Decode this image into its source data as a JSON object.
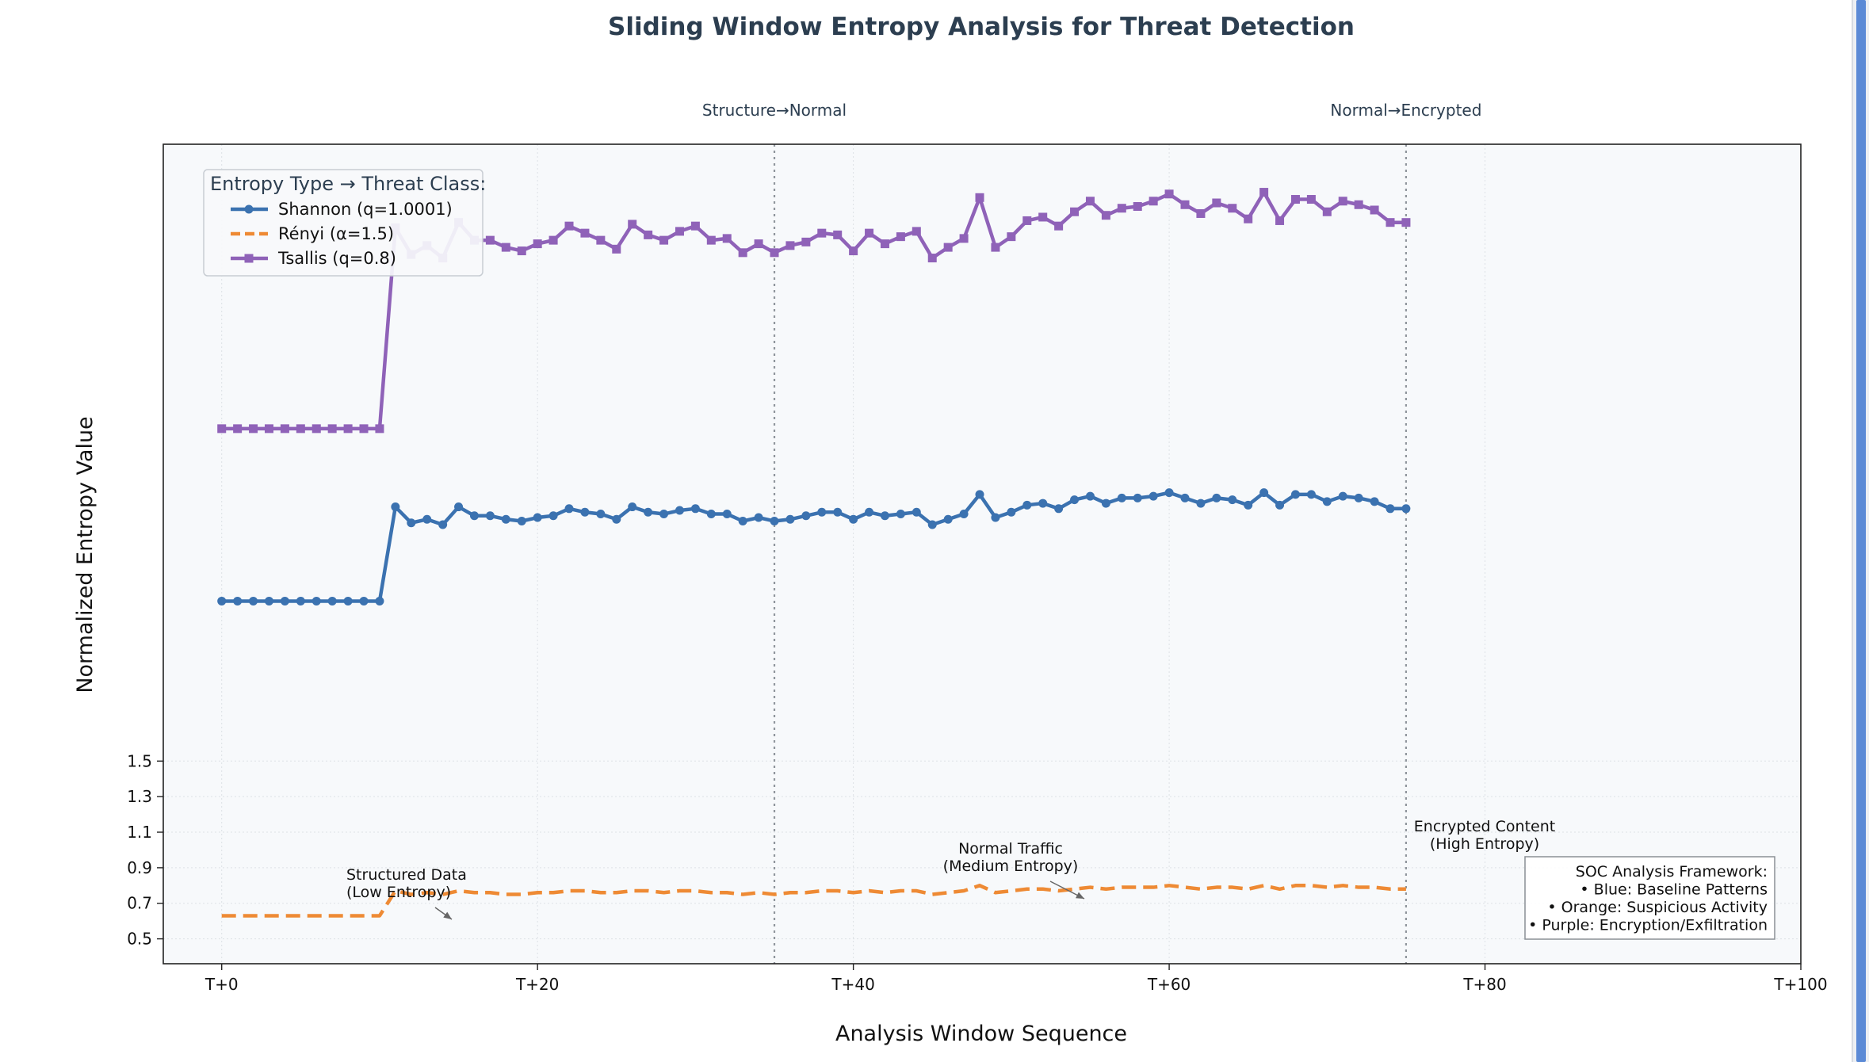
{
  "chart_data": {
    "type": "line",
    "title": "Sliding Window Entropy Analysis for Threat Detection",
    "xlabel": "Analysis Window Sequence",
    "ylabel": "Normalized Entropy Value",
    "xlim": [
      -3.7,
      100
    ],
    "ylim": [
      0.36,
      4.97
    ],
    "x_ticks": [
      0,
      20,
      40,
      60,
      80,
      100
    ],
    "x_tick_labels": [
      "T+0",
      "T+20",
      "T+40",
      "T+60",
      "T+80",
      "T+100"
    ],
    "y_ticks": [
      0.5,
      0.7,
      0.9,
      1.1,
      1.3,
      1.5
    ],
    "y_tick_labels": [
      "0.5",
      "0.7",
      "0.9",
      "1.1",
      "1.3",
      "1.5"
    ],
    "grid": true,
    "legend": {
      "title": "Entropy Type → Threat Class:",
      "placement": "top-left"
    },
    "x": [
      0,
      1,
      2,
      3,
      4,
      5,
      6,
      7,
      8,
      9,
      10,
      11,
      12,
      13,
      14,
      15,
      16,
      17,
      18,
      19,
      20,
      21,
      22,
      23,
      24,
      25,
      26,
      27,
      28,
      29,
      30,
      31,
      32,
      33,
      34,
      35,
      36,
      37,
      38,
      39,
      40,
      41,
      42,
      43,
      44,
      45,
      46,
      47,
      48,
      49,
      50,
      51,
      52,
      53,
      54,
      55,
      56,
      57,
      58,
      59,
      60,
      61,
      62,
      63,
      64,
      65,
      66,
      67,
      68,
      69,
      70,
      71,
      72,
      73,
      74,
      75
    ],
    "series": [
      {
        "name": "Shannon (q=1.0001)",
        "color": "#3b72b0",
        "style": "solid-circle",
        "values": [
          2.4,
          2.4,
          2.4,
          2.4,
          2.4,
          2.4,
          2.4,
          2.4,
          2.4,
          2.4,
          2.4,
          2.93,
          2.84,
          2.86,
          2.83,
          2.93,
          2.88,
          2.88,
          2.86,
          2.85,
          2.87,
          2.88,
          2.92,
          2.9,
          2.89,
          2.86,
          2.93,
          2.9,
          2.89,
          2.91,
          2.92,
          2.89,
          2.89,
          2.85,
          2.87,
          2.85,
          2.86,
          2.88,
          2.9,
          2.9,
          2.86,
          2.9,
          2.88,
          2.89,
          2.9,
          2.83,
          2.86,
          2.89,
          3.0,
          2.87,
          2.9,
          2.94,
          2.95,
          2.92,
          2.97,
          2.99,
          2.95,
          2.98,
          2.98,
          2.99,
          3.01,
          2.98,
          2.95,
          2.98,
          2.97,
          2.94,
          3.01,
          2.94,
          3.0,
          3.0,
          2.96,
          2.99,
          2.98,
          2.96,
          2.92,
          2.92
        ]
      },
      {
        "name": "Rényi (α=1.5)",
        "color": "#ee8a34",
        "style": "dashed",
        "values": [
          0.63,
          0.63,
          0.63,
          0.63,
          0.63,
          0.63,
          0.63,
          0.63,
          0.63,
          0.63,
          0.63,
          0.77,
          0.75,
          0.76,
          0.75,
          0.77,
          0.76,
          0.76,
          0.75,
          0.75,
          0.76,
          0.76,
          0.77,
          0.77,
          0.76,
          0.76,
          0.77,
          0.77,
          0.76,
          0.77,
          0.77,
          0.76,
          0.76,
          0.75,
          0.76,
          0.75,
          0.76,
          0.76,
          0.77,
          0.77,
          0.76,
          0.77,
          0.76,
          0.77,
          0.77,
          0.75,
          0.76,
          0.77,
          0.8,
          0.76,
          0.77,
          0.78,
          0.78,
          0.77,
          0.78,
          0.79,
          0.78,
          0.79,
          0.79,
          0.79,
          0.8,
          0.79,
          0.78,
          0.79,
          0.79,
          0.78,
          0.8,
          0.78,
          0.8,
          0.8,
          0.79,
          0.8,
          0.79,
          0.79,
          0.78,
          0.78
        ]
      },
      {
        "name": "Tsallis (q=0.8)",
        "color": "#8f62b8",
        "style": "solid-square",
        "values": [
          3.37,
          3.37,
          3.37,
          3.37,
          3.37,
          3.37,
          3.37,
          3.37,
          3.37,
          3.37,
          3.37,
          4.5,
          4.35,
          4.4,
          4.33,
          4.53,
          4.43,
          4.43,
          4.39,
          4.37,
          4.41,
          4.43,
          4.51,
          4.47,
          4.43,
          4.38,
          4.52,
          4.46,
          4.43,
          4.48,
          4.51,
          4.43,
          4.44,
          4.36,
          4.41,
          4.36,
          4.4,
          4.42,
          4.47,
          4.46,
          4.37,
          4.47,
          4.41,
          4.45,
          4.48,
          4.33,
          4.39,
          4.44,
          4.67,
          4.39,
          4.45,
          4.54,
          4.56,
          4.51,
          4.59,
          4.65,
          4.57,
          4.61,
          4.62,
          4.65,
          4.69,
          4.63,
          4.58,
          4.64,
          4.61,
          4.55,
          4.7,
          4.54,
          4.66,
          4.66,
          4.59,
          4.65,
          4.63,
          4.6,
          4.53,
          4.53
        ]
      }
    ],
    "vlines": [
      {
        "x": 35,
        "label": "Structure→Normal"
      },
      {
        "x": 75,
        "label": "Normal→Encrypted"
      }
    ],
    "annotations": [
      {
        "lines": [
          "Structured Data",
          "(Low Entropy)"
        ],
        "target_x": 15,
        "target_y": 0.7
      },
      {
        "lines": [
          "Normal Traffic",
          "(Medium Entropy)"
        ],
        "target_x": 55,
        "target_y": 0.85
      },
      {
        "lines": [
          "Encrypted Content",
          "(High Entropy)"
        ]
      }
    ],
    "info_box": [
      "SOC Analysis Framework:",
      "• Blue: Baseline Patterns",
      "• Orange: Suspicious Activity",
      "• Purple: Encryption/Exfiltration"
    ]
  }
}
